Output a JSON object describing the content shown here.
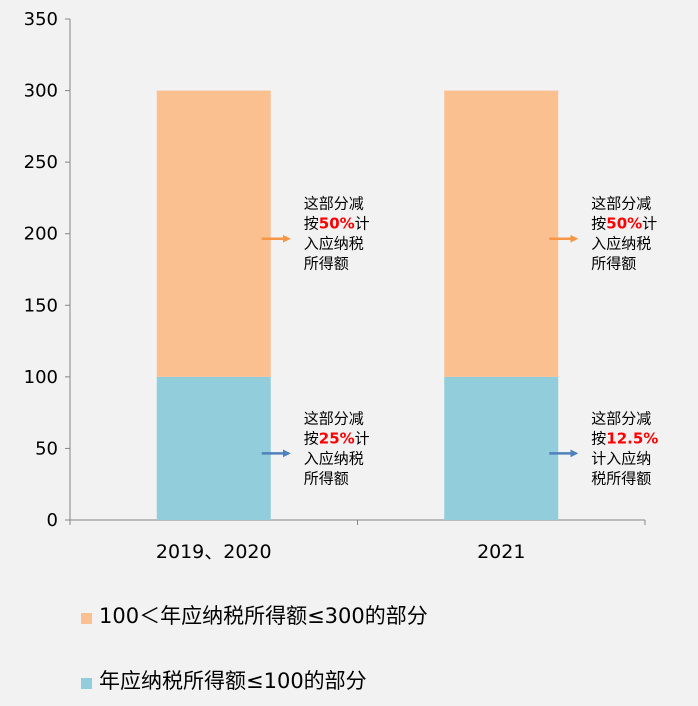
{
  "chart_data": {
    "type": "bar",
    "stacked": true,
    "categories": [
      "2019、2020",
      "2021"
    ],
    "series": [
      {
        "name": "年应纳税所得额≤100的部分",
        "values": [
          100,
          100
        ],
        "color": "#92cddc"
      },
      {
        "name": "100＜年应纳税所得额≤300的部分",
        "values": [
          200,
          200
        ],
        "color": "#fac090"
      }
    ],
    "ylim": [
      0,
      350
    ],
    "yticks": [
      "0",
      "50",
      "100",
      "150",
      "200",
      "250",
      "300",
      "350"
    ],
    "grid": false,
    "legend_position": "bottom",
    "annotations": [
      {
        "category": 0,
        "series": 1,
        "lines": [
          [
            {
              "t": "这部分减"
            }
          ],
          [
            {
              "t": "按"
            },
            {
              "t": "50%",
              "hl": true
            },
            {
              "t": "计"
            }
          ],
          [
            {
              "t": "入应纳税"
            }
          ],
          [
            {
              "t": "所得额"
            }
          ]
        ],
        "arrow_color": "#f79646"
      },
      {
        "category": 0,
        "series": 0,
        "lines": [
          [
            {
              "t": "这部分减"
            }
          ],
          [
            {
              "t": "按"
            },
            {
              "t": "25%",
              "hl": true
            },
            {
              "t": "计"
            }
          ],
          [
            {
              "t": "入应纳税"
            }
          ],
          [
            {
              "t": "所得额"
            }
          ]
        ],
        "arrow_color": "#4f81bd"
      },
      {
        "category": 1,
        "series": 1,
        "lines": [
          [
            {
              "t": "这部分减"
            }
          ],
          [
            {
              "t": "按"
            },
            {
              "t": "50%",
              "hl": true
            },
            {
              "t": "计"
            }
          ],
          [
            {
              "t": "入应纳税"
            }
          ],
          [
            {
              "t": "所得额"
            }
          ]
        ],
        "arrow_color": "#f79646"
      },
      {
        "category": 1,
        "series": 0,
        "lines": [
          [
            {
              "t": "这部分减"
            }
          ],
          [
            {
              "t": "按"
            },
            {
              "t": "12.5%",
              "hl": true
            }
          ],
          [
            {
              "t": "计入应纳"
            }
          ],
          [
            {
              "t": "税所得额"
            }
          ]
        ],
        "arrow_color": "#4f81bd"
      }
    ]
  }
}
